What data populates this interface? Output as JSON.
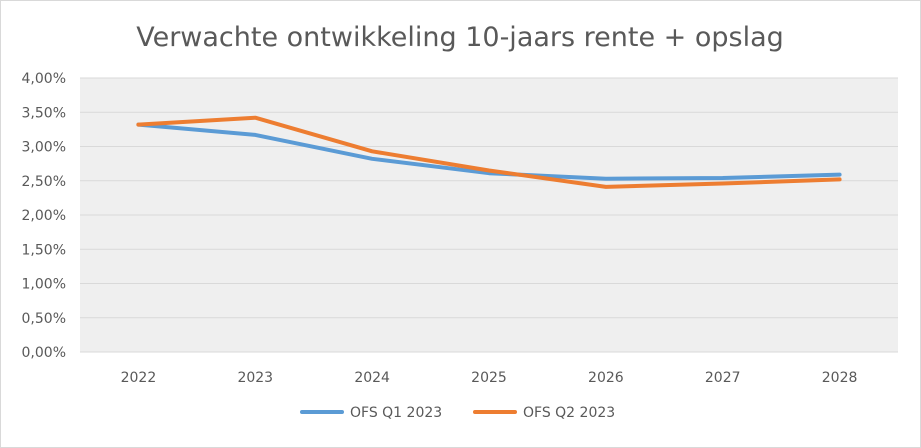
{
  "chart_data": {
    "type": "line",
    "title": "Verwachte ontwikkeling 10-jaars rente + opslag",
    "xlabel": "",
    "ylabel": "",
    "categories": [
      "2022",
      "2023",
      "2024",
      "2025",
      "2026",
      "2027",
      "2028"
    ],
    "ylim": [
      0,
      4.0
    ],
    "yticks": [
      0,
      0.5,
      1.0,
      1.5,
      2.0,
      2.5,
      3.0,
      3.5,
      4.0
    ],
    "ytick_labels": [
      "0,00%",
      "0,50%",
      "1,00%",
      "1,50%",
      "2,00%",
      "2,50%",
      "3,00%",
      "3,50%",
      "4,00%"
    ],
    "grid": true,
    "legend_position": "bottom",
    "series": [
      {
        "name": "OFS Q1 2023",
        "color": "#5b9bd5",
        "values": [
          3.32,
          3.17,
          2.82,
          2.61,
          2.53,
          2.54,
          2.59
        ]
      },
      {
        "name": "OFS Q2 2023",
        "color": "#ed7d31",
        "values": [
          3.32,
          3.42,
          2.93,
          2.65,
          2.41,
          2.46,
          2.52
        ]
      }
    ]
  }
}
